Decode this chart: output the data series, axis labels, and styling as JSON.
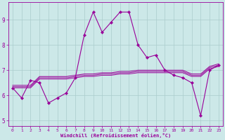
{
  "xlabel": "Windchill (Refroidissement éolien,°C)",
  "bg_color": "#cce8e8",
  "line_color": "#990099",
  "grid_color": "#aacccc",
  "xlim": [
    -0.5,
    23.5
  ],
  "ylim": [
    4.8,
    9.7
  ],
  "yticks": [
    5,
    6,
    7,
    8,
    9
  ],
  "xticks": [
    0,
    1,
    2,
    3,
    4,
    5,
    6,
    7,
    8,
    9,
    10,
    11,
    12,
    13,
    14,
    15,
    16,
    17,
    18,
    19,
    20,
    21,
    22,
    23
  ],
  "series1_x": [
    0,
    1,
    2,
    3,
    4,
    5,
    6,
    7,
    8,
    9,
    10,
    11,
    12,
    13,
    14,
    15,
    16,
    17,
    18,
    19,
    20,
    21,
    22,
    23
  ],
  "series1_y": [
    6.3,
    5.9,
    6.6,
    6.5,
    5.7,
    5.9,
    6.1,
    6.7,
    8.4,
    9.3,
    8.5,
    8.9,
    9.3,
    9.3,
    8.0,
    7.5,
    7.6,
    7.0,
    6.8,
    6.7,
    6.5,
    5.2,
    7.0,
    7.2
  ],
  "series2_x": [
    0,
    1,
    2,
    3,
    4,
    5,
    6,
    7,
    8,
    9,
    10,
    11,
    12,
    13,
    14,
    15,
    16,
    17,
    18,
    19,
    20,
    21,
    22,
    23
  ],
  "series2_y": [
    6.3,
    6.3,
    6.3,
    6.65,
    6.65,
    6.65,
    6.65,
    6.7,
    6.75,
    6.75,
    6.8,
    6.8,
    6.85,
    6.85,
    6.9,
    6.9,
    6.9,
    6.9,
    6.9,
    6.9,
    6.75,
    6.75,
    7.05,
    7.15
  ],
  "series3_x": [
    0,
    1,
    2,
    3,
    4,
    5,
    6,
    7,
    8,
    9,
    10,
    11,
    12,
    13,
    14,
    15,
    16,
    17,
    18,
    19,
    20,
    21,
    22,
    23
  ],
  "series3_y": [
    6.35,
    6.35,
    6.35,
    6.7,
    6.7,
    6.7,
    6.7,
    6.75,
    6.8,
    6.8,
    6.85,
    6.85,
    6.9,
    6.9,
    6.95,
    6.95,
    6.95,
    6.95,
    6.95,
    6.95,
    6.8,
    6.8,
    7.1,
    7.2
  ],
  "series4_x": [
    0,
    1,
    2,
    3,
    4,
    5,
    6,
    7,
    8,
    9,
    10,
    11,
    12,
    13,
    14,
    15,
    16,
    17,
    18,
    19,
    20,
    21,
    22,
    23
  ],
  "series4_y": [
    6.4,
    6.4,
    6.4,
    6.75,
    6.75,
    6.75,
    6.75,
    6.8,
    6.85,
    6.85,
    6.9,
    6.9,
    6.95,
    6.95,
    7.0,
    7.0,
    7.0,
    7.0,
    7.0,
    7.0,
    6.85,
    6.85,
    7.15,
    7.25
  ]
}
